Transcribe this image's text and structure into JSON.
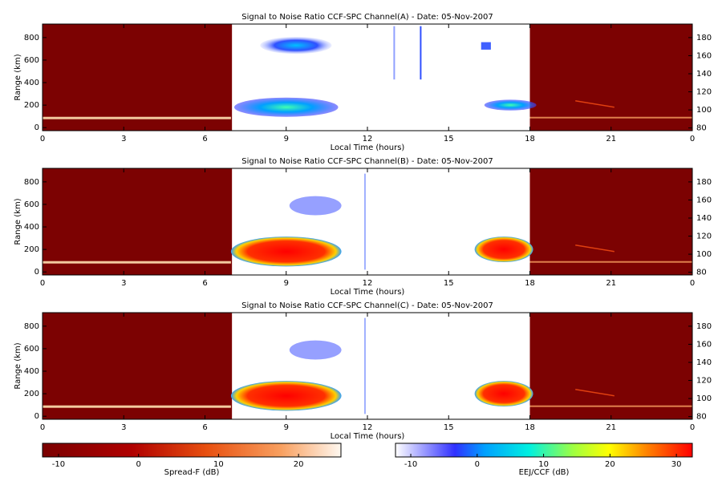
{
  "chart_data": [
    {
      "type": "heatmap",
      "title": "Signal to Noise Ratio CCF-SPC Channel(A) - Date: 05-Nov-2007",
      "xlabel": "Local Time (hours)",
      "ylabel": "Range (km)",
      "xlim": [
        0,
        24
      ],
      "xticks": [
        0,
        3,
        6,
        9,
        12,
        15,
        {
          "value": 18,
          "label": "18"
        },
        21,
        {
          "value": 24,
          "label": "0"
        }
      ],
      "ylim": [
        -27,
        920
      ],
      "yticks": [
        0,
        200,
        400,
        600,
        800
      ],
      "y2lim": [
        77,
        195
      ],
      "y2ticks": [
        80,
        100,
        120,
        140,
        160,
        180
      ]
    },
    {
      "type": "heatmap",
      "title": "Signal to Noise Ratio CCF-SPC Channel(B) - Date: 05-Nov-2007",
      "xlabel": "Local Time (hours)",
      "ylabel": "Range (km)",
      "xlim": [
        0,
        24
      ],
      "xticks": [
        0,
        3,
        6,
        9,
        12,
        15,
        18,
        21,
        {
          "value": 24,
          "label": "0"
        }
      ],
      "ylim": [
        -27,
        920
      ],
      "yticks": [
        0,
        200,
        400,
        600,
        800
      ],
      "y2lim": [
        77,
        195
      ],
      "y2ticks": [
        80,
        100,
        120,
        140,
        160,
        180
      ]
    },
    {
      "type": "heatmap",
      "title": "Signal to Noise Ratio CCF-SPC Channel(C) - Date: 05-Nov-2007",
      "xlabel": "Local Time (hours)",
      "ylabel": "Range (km)",
      "xlim": [
        0,
        24
      ],
      "xticks": [
        0,
        3,
        6,
        9,
        12,
        15,
        18,
        21,
        {
          "value": 24,
          "label": "0"
        }
      ],
      "ylim": [
        -27,
        920
      ],
      "yticks": [
        0,
        200,
        400,
        600,
        800
      ],
      "y2lim": [
        77,
        195
      ],
      "y2ticks": [
        80,
        100,
        120,
        140,
        160,
        180
      ]
    }
  ],
  "colorbars": [
    {
      "label": "Spread-F (dB)",
      "lim": [
        -12,
        25.3
      ],
      "ticks": [
        -10,
        0,
        10,
        20
      ]
    },
    {
      "label": "EEJ/CCF (dB)",
      "lim": [
        -12.3,
        32.4
      ],
      "ticks": [
        -10,
        0,
        10,
        20,
        30
      ]
    }
  ]
}
